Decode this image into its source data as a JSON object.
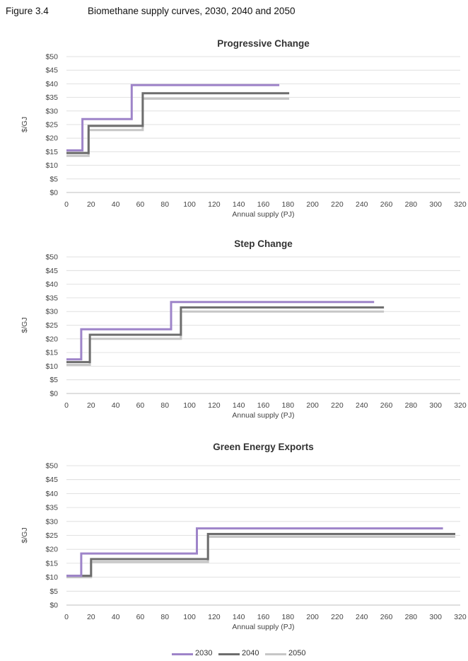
{
  "figure": {
    "number": "Figure 3.4",
    "title": "Biomethane supply curves, 2030, 2040 and 2050"
  },
  "colors": {
    "2030": "#9e84c9",
    "2040": "#6d6d6d",
    "2050": "#c6c6c6",
    "grid": "#d9d9d9"
  },
  "legend": [
    {
      "name": "2030",
      "color": "#9e84c9"
    },
    {
      "name": "2040",
      "color": "#6d6d6d"
    },
    {
      "name": "2050",
      "color": "#c6c6c6"
    }
  ],
  "chart_data": [
    {
      "type": "line",
      "step": true,
      "title": "Progressive Change",
      "xlabel": "Annual supply (PJ)",
      "ylabel": "$/GJ",
      "xlim": [
        0,
        320
      ],
      "ylim": [
        0,
        50
      ],
      "xticks": [
        0,
        20,
        40,
        60,
        80,
        100,
        120,
        140,
        160,
        180,
        200,
        220,
        240,
        260,
        280,
        300,
        320
      ],
      "yticks": [
        0,
        5,
        10,
        15,
        20,
        25,
        30,
        35,
        40,
        45,
        50
      ],
      "ytick_labels": [
        "$0",
        "$5",
        "$10",
        "$15",
        "$20",
        "$25",
        "$30",
        "$35",
        "$40",
        "$45",
        "$50"
      ],
      "grid": true,
      "series": [
        {
          "name": "2030",
          "x": [
            0,
            13,
            13,
            53,
            53,
            173
          ],
          "y": [
            15.5,
            15.5,
            27,
            27,
            39.5,
            39.5
          ]
        },
        {
          "name": "2040",
          "x": [
            0,
            18,
            18,
            62,
            62,
            181
          ],
          "y": [
            14.5,
            14.5,
            24.5,
            24.5,
            36.5,
            36.5
          ]
        },
        {
          "name": "2050",
          "x": [
            0,
            18,
            18,
            62,
            62,
            181
          ],
          "y": [
            13.5,
            13.5,
            23,
            23,
            34.5,
            34.5
          ]
        }
      ]
    },
    {
      "type": "line",
      "step": true,
      "title": "Step Change",
      "xlabel": "Annual supply (PJ)",
      "ylabel": "$/GJ",
      "xlim": [
        0,
        320
      ],
      "ylim": [
        0,
        50
      ],
      "xticks": [
        0,
        20,
        40,
        60,
        80,
        100,
        120,
        140,
        160,
        180,
        200,
        220,
        240,
        260,
        280,
        300,
        320
      ],
      "yticks": [
        0,
        5,
        10,
        15,
        20,
        25,
        30,
        35,
        40,
        45,
        50
      ],
      "ytick_labels": [
        "$0",
        "$5",
        "$10",
        "$15",
        "$20",
        "$25",
        "$30",
        "$35",
        "$40",
        "$45",
        "$50"
      ],
      "grid": true,
      "series": [
        {
          "name": "2030",
          "x": [
            0,
            12,
            12,
            85,
            85,
            250
          ],
          "y": [
            12.5,
            12.5,
            23.5,
            23.5,
            33.5,
            33.5
          ]
        },
        {
          "name": "2040",
          "x": [
            0,
            19,
            19,
            93,
            93,
            258
          ],
          "y": [
            11.5,
            11.5,
            21.5,
            21.5,
            31.5,
            31.5
          ]
        },
        {
          "name": "2050",
          "x": [
            0,
            19,
            19,
            93,
            93,
            258
          ],
          "y": [
            10.5,
            10.5,
            20,
            20,
            30,
            30
          ]
        }
      ]
    },
    {
      "type": "line",
      "step": true,
      "title": "Green Energy Exports",
      "xlabel": "Annual supply (PJ)",
      "ylabel": "$/GJ",
      "xlim": [
        0,
        320
      ],
      "ylim": [
        0,
        50
      ],
      "xticks": [
        0,
        20,
        40,
        60,
        80,
        100,
        120,
        140,
        160,
        180,
        200,
        220,
        240,
        260,
        280,
        300,
        320
      ],
      "yticks": [
        0,
        5,
        10,
        15,
        20,
        25,
        30,
        35,
        40,
        45,
        50
      ],
      "ytick_labels": [
        "$0",
        "$5",
        "$10",
        "$15",
        "$20",
        "$25",
        "$30",
        "$35",
        "$40",
        "$45",
        "$50"
      ],
      "grid": true,
      "series": [
        {
          "name": "2030",
          "x": [
            0,
            12,
            12,
            106,
            106,
            306
          ],
          "y": [
            10.5,
            10.5,
            18.5,
            18.5,
            27.5,
            27.5
          ]
        },
        {
          "name": "2040",
          "x": [
            0,
            20,
            20,
            115,
            115,
            316
          ],
          "y": [
            10.5,
            10.5,
            16.5,
            16.5,
            25.5,
            25.5
          ]
        },
        {
          "name": "2050",
          "x": [
            0,
            20,
            20,
            115,
            115,
            316
          ],
          "y": [
            10,
            10,
            15.5,
            15.5,
            24.5,
            24.5
          ]
        }
      ]
    }
  ]
}
